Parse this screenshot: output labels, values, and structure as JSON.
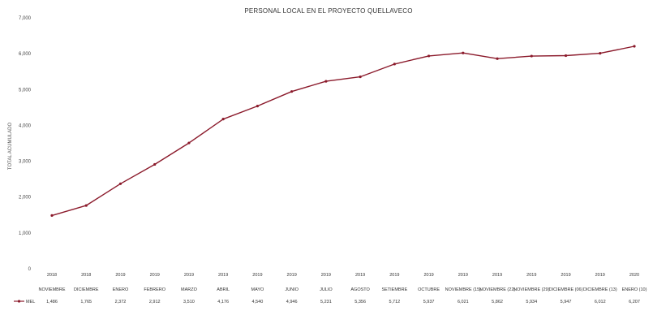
{
  "chart_data": {
    "type": "line",
    "title": "PERSONAL LOCAL EN EL PROYECTO QUELLAVECO",
    "xlabel": "",
    "ylabel": "TOTAL ACUMULADO",
    "ylim": [
      0,
      7000
    ],
    "yticks": [
      "0",
      "1,000",
      "2,000",
      "3,000",
      "4,000",
      "5,000",
      "6,000",
      "7,000"
    ],
    "grid": false,
    "legend": "bottom-left (data table)",
    "x_years": [
      "2018",
      "2018",
      "2019",
      "2019",
      "2019",
      "2019",
      "2019",
      "2019",
      "2019",
      "2019",
      "2019",
      "2019",
      "2019",
      "2019",
      "2019",
      "2019",
      "2019",
      "2020"
    ],
    "categories": [
      "NOVIEMBRE",
      "DICIEMBRE",
      "ENERO",
      "FEBRERO",
      "MARZO",
      "ABRIL",
      "MAYO",
      "JUNIO",
      "JULIO",
      "AGOSTO",
      "SETIEMBRE",
      "OCTUBRE",
      "NOVIEMBRE (15)",
      "NOVIEMBRE (22)",
      "NOVIEMBRE (29)",
      "DICIEMBRE (06)",
      "DICIEMBRE (13)",
      "ENERO (10)"
    ],
    "series": [
      {
        "name": "MEL",
        "color": "#8b1a2b",
        "values": [
          1486,
          1765,
          2372,
          2912,
          3510,
          4176,
          4540,
          4946,
          5231,
          5356,
          5712,
          5937,
          6021,
          5862,
          5934,
          5947,
          6012,
          6207
        ],
        "labels": [
          "1,486",
          "1,765",
          "2,372",
          "2,912",
          "3,510",
          "4,176",
          "4,540",
          "4,946",
          "5,231",
          "5,356",
          "5,712",
          "5,937",
          "6,021",
          "5,862",
          "5,934",
          "5,947",
          "6,012",
          "6,207"
        ]
      }
    ]
  }
}
